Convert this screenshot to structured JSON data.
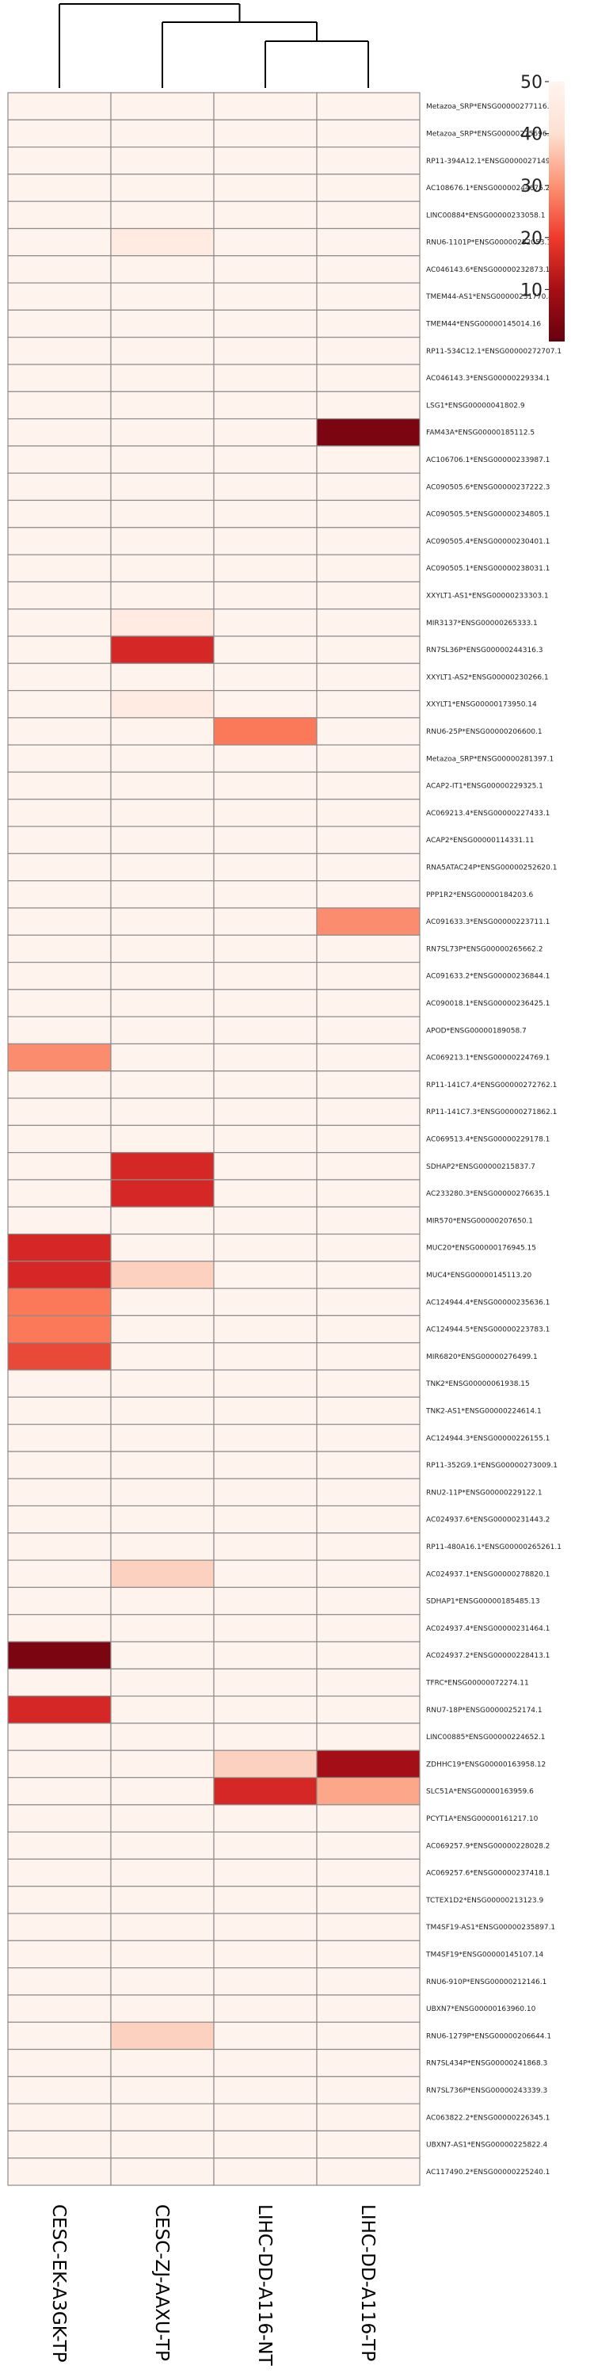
{
  "chart_data": {
    "type": "heatmap",
    "title": "",
    "xlabel": "",
    "ylabel": "",
    "columns": [
      "CESC-EK-A3GK-TP",
      "CESC-ZJ-AAXU-TP",
      "LIHC-DD-A116-NT",
      "LIHC-DD-A116-TP"
    ],
    "rows": [
      "Metazoa_SRP*ENSG00000277116.1",
      "Metazoa_SRP*ENSG00000275696.1",
      "RP11-394A12.1*ENSG00000271493.1",
      "AC108676.1*ENSG00000244675.2",
      "LINC00884*ENSG00000233058.1",
      "RNU6-1101P*ENSG00000252053.1",
      "AC046143.6*ENSG00000232873.1",
      "TMEM44-AS1*ENSG00000231770.4",
      "TMEM44*ENSG00000145014.16",
      "RP11-534C12.1*ENSG00000272707.1",
      "AC046143.3*ENSG00000229334.1",
      "LSG1*ENSG00000041802.9",
      "FAM43A*ENSG00000185112.5",
      "AC106706.1*ENSG00000233987.1",
      "AC090505.6*ENSG00000237222.3",
      "AC090505.5*ENSG00000234805.1",
      "AC090505.4*ENSG00000230401.1",
      "AC090505.1*ENSG00000238031.1",
      "XXYLT1-AS1*ENSG00000233303.1",
      "MIR3137*ENSG00000265333.1",
      "RN7SL36P*ENSG00000244316.3",
      "XXYLT1-AS2*ENSG00000230266.1",
      "XXYLT1*ENSG00000173950.14",
      "RNU6-25P*ENSG00000206600.1",
      "Metazoa_SRP*ENSG00000281397.1",
      "ACAP2-IT1*ENSG00000229325.1",
      "AC069213.4*ENSG00000227433.1",
      "ACAP2*ENSG00000114331.11",
      "RNA5ATAC24P*ENSG00000252620.1",
      "PPP1R2*ENSG00000184203.6",
      "AC091633.3*ENSG00000223711.1",
      "RN7SL73P*ENSG00000265662.2",
      "AC091633.2*ENSG00000236844.1",
      "AC090018.1*ENSG00000236425.1",
      "APOD*ENSG00000189058.7",
      "AC069213.1*ENSG00000224769.1",
      "RP11-141C7.4*ENSG00000272762.1",
      "RP11-141C7.3*ENSG00000271862.1",
      "AC069513.4*ENSG00000229178.1",
      "SDHAP2*ENSG00000215837.7",
      "AC233280.3*ENSG00000276635.1",
      "MIR570*ENSG00000207650.1",
      "MUC20*ENSG00000176945.15",
      "MUC4*ENSG00000145113.20",
      "AC124944.4*ENSG00000235636.1",
      "AC124944.5*ENSG00000223783.1",
      "MIR6820*ENSG00000276499.1",
      "TNK2*ENSG00000061938.15",
      "TNK2-AS1*ENSG00000224614.1",
      "AC124944.3*ENSG00000226155.1",
      "RP11-352G9.1*ENSG00000273009.1",
      "RNU2-11P*ENSG00000229122.1",
      "AC024937.6*ENSG00000231443.2",
      "RP11-480A16.1*ENSG00000265261.1",
      "AC024937.1*ENSG00000278820.1",
      "SDHAP1*ENSG00000185485.13",
      "AC024937.4*ENSG00000231464.1",
      "AC024937.2*ENSG00000228413.1",
      "TFRC*ENSG00000072274.11",
      "RNU7-18P*ENSG00000252174.1",
      "LINC00885*ENSG00000224652.1",
      "ZDHHC19*ENSG00000163958.12",
      "SLC51A*ENSG00000163959.6",
      "PCYT1A*ENSG00000161217.10",
      "AC069257.9*ENSG00000228028.2",
      "AC069257.6*ENSG00000237418.1",
      "TCTEX1D2*ENSG00000213123.9",
      "TM4SF19-AS1*ENSG00000235897.1",
      "TM4SF19*ENSG00000145107.14",
      "RNU6-910P*ENSG00000212146.1",
      "UBXN7*ENSG00000163960.10",
      "RNU6-1279P*ENSG00000206644.1",
      "RN7SL434P*ENSG00000241868.3",
      "RN7SL736P*ENSG00000243339.3",
      "AC063822.2*ENSG00000226345.1",
      "UBXN7-AS1*ENSG00000225822.4",
      "AC117490.2*ENSG00000225240.1"
    ],
    "values": [
      [
        49,
        49,
        49,
        49
      ],
      [
        49,
        49,
        49,
        49
      ],
      [
        49,
        49,
        49,
        49
      ],
      [
        49,
        49,
        49,
        49
      ],
      [
        49,
        49,
        49,
        49
      ],
      [
        49,
        45,
        49,
        49
      ],
      [
        49,
        49,
        49,
        49
      ],
      [
        49,
        49,
        49,
        49
      ],
      [
        49,
        49,
        49,
        49
      ],
      [
        49,
        49,
        49,
        49
      ],
      [
        49,
        49,
        49,
        49
      ],
      [
        49,
        49,
        49,
        49
      ],
      [
        49,
        49,
        49,
        2
      ],
      [
        49,
        49,
        49,
        49
      ],
      [
        49,
        49,
        49,
        49
      ],
      [
        49,
        49,
        49,
        49
      ],
      [
        49,
        49,
        49,
        49
      ],
      [
        49,
        49,
        49,
        49
      ],
      [
        49,
        49,
        49,
        49
      ],
      [
        49,
        45,
        49,
        49
      ],
      [
        49,
        12,
        49,
        49
      ],
      [
        49,
        49,
        49,
        49
      ],
      [
        49,
        45,
        49,
        49
      ],
      [
        49,
        49,
        22,
        49
      ],
      [
        49,
        49,
        49,
        49
      ],
      [
        49,
        49,
        49,
        49
      ],
      [
        49,
        49,
        49,
        49
      ],
      [
        49,
        49,
        49,
        49
      ],
      [
        49,
        49,
        49,
        49
      ],
      [
        49,
        49,
        49,
        49
      ],
      [
        49,
        49,
        49,
        25
      ],
      [
        49,
        49,
        49,
        49
      ],
      [
        49,
        49,
        49,
        49
      ],
      [
        49,
        49,
        49,
        49
      ],
      [
        49,
        49,
        49,
        49
      ],
      [
        25,
        49,
        49,
        49
      ],
      [
        49,
        49,
        49,
        49
      ],
      [
        49,
        49,
        49,
        49
      ],
      [
        49,
        49,
        49,
        49
      ],
      [
        49,
        12,
        49,
        49
      ],
      [
        49,
        12,
        49,
        49
      ],
      [
        49,
        49,
        49,
        49
      ],
      [
        12,
        49,
        49,
        49
      ],
      [
        12,
        37,
        49,
        49
      ],
      [
        22,
        49,
        49,
        49
      ],
      [
        22,
        49,
        49,
        49
      ],
      [
        16,
        49,
        49,
        49
      ],
      [
        49,
        49,
        49,
        49
      ],
      [
        49,
        49,
        49,
        49
      ],
      [
        49,
        49,
        49,
        49
      ],
      [
        49,
        49,
        49,
        49
      ],
      [
        49,
        49,
        49,
        49
      ],
      [
        49,
        49,
        49,
        49
      ],
      [
        49,
        49,
        49,
        49
      ],
      [
        49,
        37,
        49,
        49
      ],
      [
        49,
        49,
        49,
        49
      ],
      [
        49,
        49,
        49,
        49
      ],
      [
        2,
        49,
        49,
        49
      ],
      [
        49,
        49,
        49,
        49
      ],
      [
        12,
        49,
        49,
        49
      ],
      [
        49,
        49,
        49,
        49
      ],
      [
        49,
        49,
        37,
        6
      ],
      [
        49,
        49,
        12,
        29
      ],
      [
        49,
        49,
        49,
        49
      ],
      [
        49,
        49,
        49,
        49
      ],
      [
        49,
        49,
        49,
        49
      ],
      [
        49,
        49,
        49,
        49
      ],
      [
        49,
        49,
        49,
        49
      ],
      [
        49,
        49,
        49,
        49
      ],
      [
        49,
        49,
        49,
        49
      ],
      [
        49,
        49,
        49,
        49
      ],
      [
        49,
        37,
        49,
        49
      ],
      [
        49,
        49,
        49,
        49
      ],
      [
        49,
        49,
        49,
        49
      ],
      [
        49,
        49,
        49,
        49
      ],
      [
        49,
        49,
        49,
        49
      ],
      [
        49,
        49,
        49,
        49
      ]
    ],
    "color_range": [
      0,
      50
    ],
    "colormap": [
      "#67000d",
      "#cb181d",
      "#fb6a4a",
      "#fcae91",
      "#fee0d2",
      "#fff5f0"
    ],
    "legend": {
      "placement": "top-right",
      "ticks": [
        10,
        20,
        30,
        40,
        50
      ]
    },
    "column_dendrogram": true
  }
}
